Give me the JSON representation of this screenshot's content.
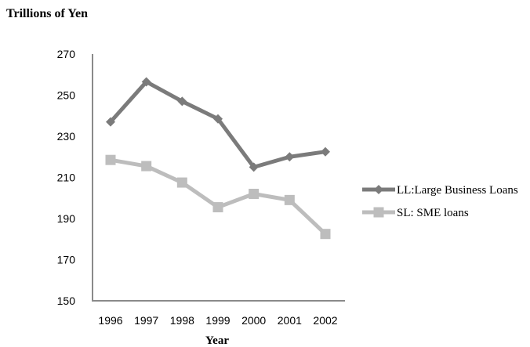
{
  "chart_data": {
    "type": "line",
    "title": "",
    "ylabel": "Trillions of Yen",
    "xlabel": "Year",
    "categories": [
      "1996",
      "1997",
      "1998",
      "1999",
      "2000",
      "2001",
      "2002"
    ],
    "ylim": [
      150,
      270
    ],
    "yticks": [
      150,
      170,
      190,
      210,
      230,
      250,
      270
    ],
    "grid": false,
    "legend_position": "right",
    "series": [
      {
        "name": "LL:Large Business Loans",
        "values": [
          237,
          256.5,
          247,
          238.5,
          215,
          220,
          222.5
        ],
        "color": "#7b7b7b",
        "marker": "diamond"
      },
      {
        "name": "SL: SME loans",
        "values": [
          218.5,
          215.5,
          207.5,
          195.5,
          202,
          199,
          182.5
        ],
        "color": "#bdbdbd",
        "marker": "square"
      }
    ]
  }
}
